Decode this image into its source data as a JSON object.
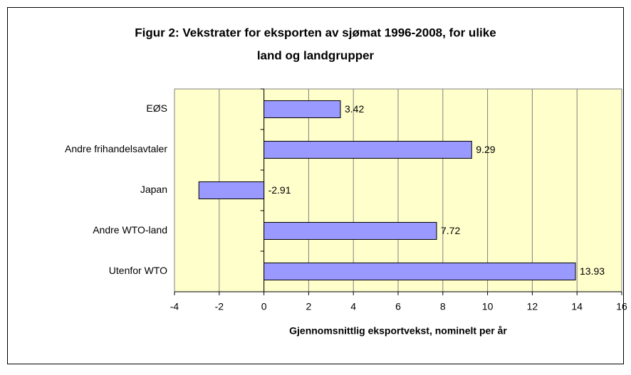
{
  "chart_data": {
    "type": "barh",
    "title_lines": [
      "Figur 2: Vekstrater for eksporten av sjømat 1996-2008, for ulike",
      "land og landgrupper"
    ],
    "xlabel": "Gjennomsnittlig eksportvekst, nominelt per år",
    "categories": [
      "EØS",
      "Andre frihandelsavtaler",
      "Japan",
      "Andre WTO-land",
      "Utenfor WTO"
    ],
    "values": [
      3.42,
      9.29,
      -2.91,
      7.72,
      13.93
    ],
    "color": "#9999ff",
    "xlim": [
      -4,
      16
    ],
    "xticks": [
      -4,
      -2,
      0,
      2,
      4,
      6,
      8,
      10,
      12,
      14,
      16
    ],
    "grid": true
  }
}
